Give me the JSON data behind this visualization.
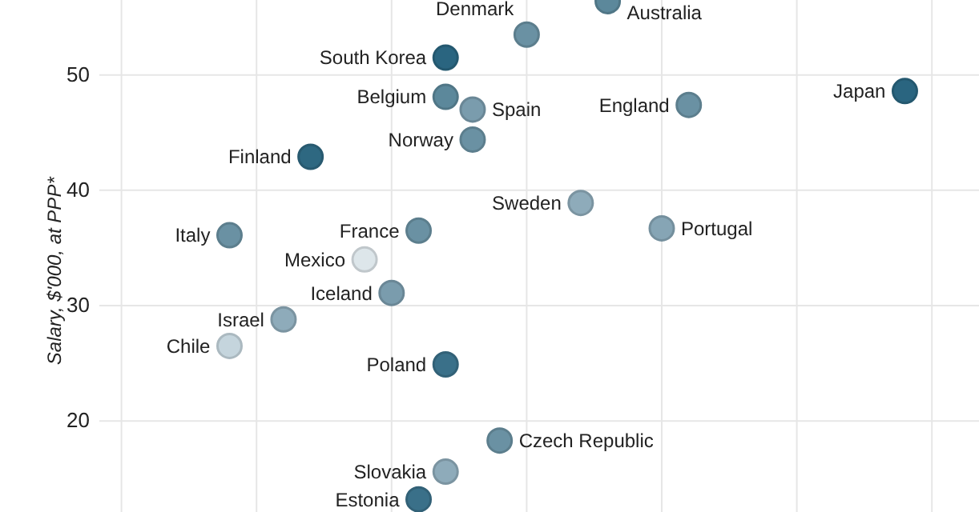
{
  "chart_data": {
    "type": "scatter",
    "ylabel": "Salary, $'000, at PPP*",
    "ylim": [
      12.1,
      56.5
    ],
    "yticks": [
      20,
      30,
      40,
      50
    ],
    "grid": true,
    "marker": "circle",
    "categories": [
      null,
      null,
      null,
      null,
      null,
      null,
      null,
      null,
      null,
      null,
      null,
      null,
      null,
      null,
      null,
      null,
      null,
      null,
      null,
      null,
      null,
      null,
      null,
      null,
      null,
      null,
      null,
      null,
      null,
      null,
      null,
      null
    ],
    "series": [
      {
        "values": [
          null,
          null,
          null,
          null,
          36.1,
          null,
          28.8,
          42.9,
          null,
          34.0,
          31.1,
          36.5,
          51.5,
          47.0,
          18.3,
          53.5,
          null,
          38.9,
          56.4,
          null,
          36.7,
          47.4,
          null,
          null,
          null,
          null,
          null,
          null,
          null,
          48.6,
          null,
          null
        ],
        "value_labels": [
          null,
          null,
          null,
          null,
          "Italy",
          null,
          "Israel",
          "Finland",
          null,
          "Mexico",
          "Iceland",
          "France",
          "South Korea",
          "Spain",
          "Czech Republic",
          "Denmark",
          null,
          "Sweden",
          "Australia",
          null,
          "Portugal",
          "England",
          null,
          null,
          null,
          null,
          null,
          null,
          null,
          "Japan",
          null,
          null
        ],
        "colors": [
          null,
          null,
          null,
          null,
          "#6a91a3",
          null,
          "#8eabba",
          "#2e6881",
          null,
          "#dde6ea",
          "#7a9cad",
          "#6a91a3",
          "#2a6580",
          "#7a9cad",
          "#6a91a3",
          "#6a91a3",
          null,
          "#8eabba",
          "#5c889b",
          null,
          "#86a5b5",
          "#6a91a3",
          null,
          null,
          null,
          null,
          null,
          null,
          null,
          "#2a6580",
          null,
          null
        ]
      },
      {
        "values": [
          null,
          null,
          null,
          null,
          26.5,
          null,
          null,
          null,
          null,
          null,
          null,
          13.2,
          48.1,
          44.4,
          null,
          null,
          null,
          null,
          null,
          null,
          null,
          null,
          null,
          null,
          null,
          null,
          null,
          null,
          null,
          null,
          null,
          null
        ],
        "value_labels": [
          null,
          null,
          null,
          null,
          "Chile",
          null,
          null,
          null,
          null,
          null,
          null,
          "Estonia",
          "Belgium",
          "Norway",
          null,
          null,
          null,
          null,
          null,
          null,
          null,
          null,
          null,
          null,
          null,
          null,
          null,
          null,
          null,
          null,
          null,
          null
        ],
        "colors": [
          null,
          null,
          null,
          null,
          "#c5d5dd",
          null,
          null,
          null,
          null,
          null,
          null,
          "#3a7089",
          "#5c889b",
          "#6a91a3",
          null,
          null,
          null,
          null,
          null,
          null,
          null,
          null,
          null,
          null,
          null,
          null,
          null,
          null,
          null,
          null,
          null,
          null
        ]
      },
      {
        "values": [
          null,
          null,
          null,
          null,
          null,
          null,
          null,
          null,
          null,
          null,
          null,
          null,
          24.9,
          null,
          null,
          null,
          null,
          null,
          null,
          null,
          null,
          null,
          null,
          null,
          null,
          null,
          null,
          null,
          null,
          null,
          null,
          null
        ],
        "value_labels": [
          null,
          null,
          null,
          null,
          null,
          null,
          null,
          null,
          null,
          null,
          null,
          null,
          "Poland",
          null,
          null,
          null,
          null,
          null,
          null,
          null,
          null,
          null,
          null,
          null,
          null,
          null,
          null,
          null,
          null,
          null,
          null,
          null
        ],
        "colors": [
          null,
          null,
          null,
          null,
          null,
          null,
          null,
          null,
          null,
          null,
          null,
          null,
          "#3a7089",
          null,
          null,
          null,
          null,
          null,
          null,
          null,
          null,
          null,
          null,
          null,
          null,
          null,
          null,
          null,
          null,
          null,
          null,
          null
        ]
      },
      {
        "values": [
          null,
          null,
          null,
          null,
          null,
          null,
          null,
          null,
          null,
          null,
          null,
          null,
          15.6,
          null,
          null,
          null,
          null,
          null,
          null,
          null,
          null,
          null,
          null,
          null,
          null,
          null,
          null,
          null,
          null,
          null,
          null,
          null
        ],
        "value_labels": [
          null,
          null,
          null,
          null,
          null,
          null,
          null,
          null,
          null,
          null,
          null,
          null,
          "Slovakia",
          null,
          null,
          null,
          null,
          null,
          null,
          null,
          null,
          null,
          null,
          null,
          null,
          null,
          null,
          null,
          null,
          null,
          null,
          null
        ],
        "colors": [
          null,
          null,
          null,
          null,
          null,
          null,
          null,
          null,
          null,
          null,
          null,
          null,
          "#8eabba",
          null,
          null,
          null,
          null,
          null,
          null,
          null,
          null,
          null,
          null,
          null,
          null,
          null,
          null,
          null,
          null,
          null,
          null,
          null
        ]
      }
    ]
  }
}
